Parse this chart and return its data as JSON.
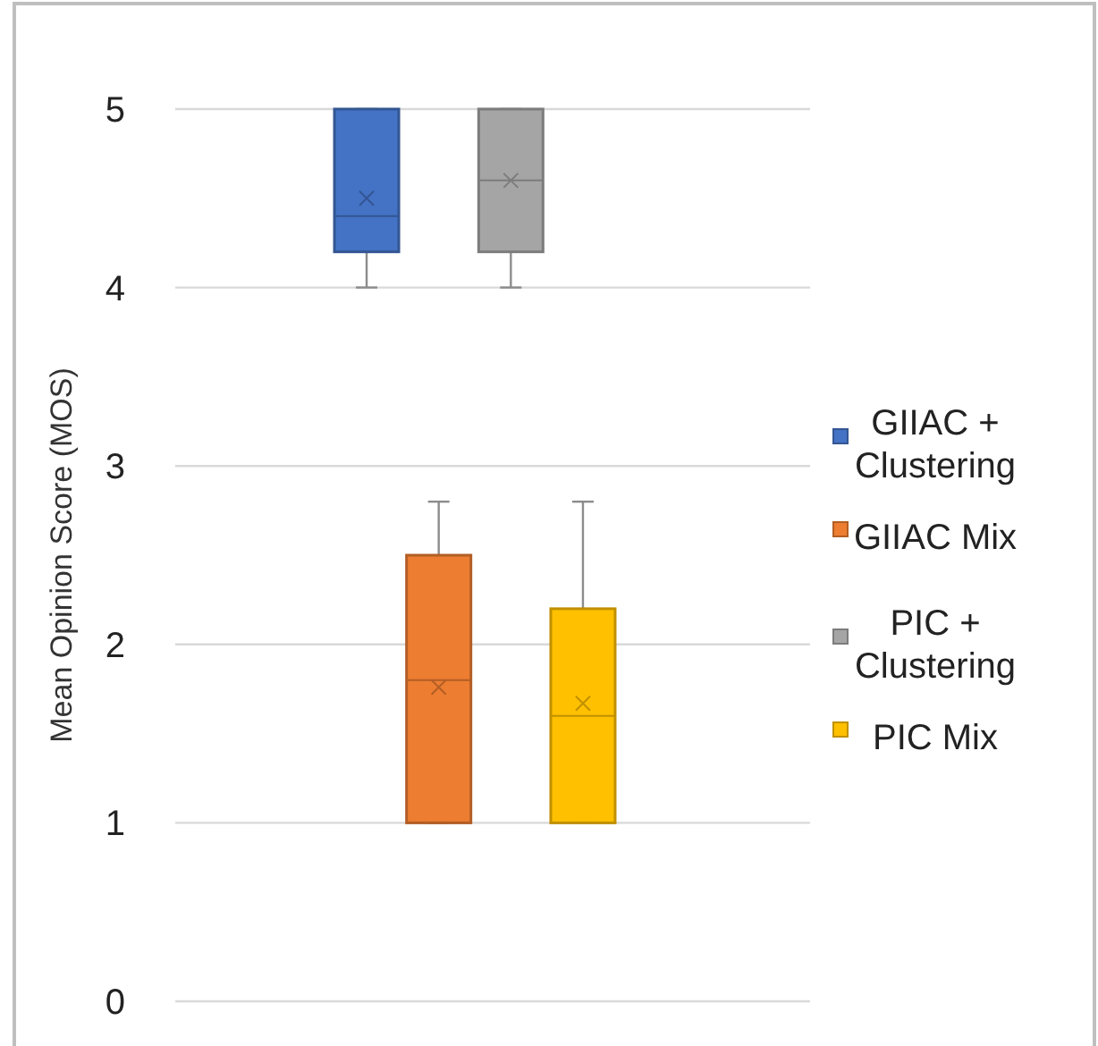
{
  "chart_data": {
    "type": "box",
    "ylabel": "Mean Opinion Score (MOS)",
    "categories": [
      null
    ],
    "ylim": [
      0,
      5
    ],
    "yticks": [
      0,
      1,
      2,
      3,
      4,
      5
    ],
    "grid": "y",
    "legend": "right",
    "series": [
      {
        "name": "GIIAC + Clustering",
        "color": "#4472c4",
        "boxes": [
          {
            "low": 4,
            "q1": 4.2,
            "median": 4.4,
            "q3": 5,
            "high": 5,
            "mean": 4.5
          }
        ]
      },
      {
        "name": "GIIAC Mix",
        "color": "#ed7d31",
        "boxes": [
          {
            "low": 1,
            "q1": 1,
            "median": 1.8,
            "q3": 2.5,
            "high": 2.8,
            "mean": 1.76
          }
        ]
      },
      {
        "name": "PIC + Clustering",
        "color": "#a5a5a5",
        "boxes": [
          {
            "low": 4,
            "q1": 4.2,
            "median": 4.6,
            "q3": 5,
            "high": 5,
            "mean": 4.6
          }
        ]
      },
      {
        "name": "PIC Mix",
        "color": "#ffc000",
        "boxes": [
          {
            "low": 1,
            "q1": 1,
            "median": 1.6,
            "q3": 2.2,
            "high": 2.8,
            "mean": 1.67
          }
        ]
      }
    ]
  }
}
